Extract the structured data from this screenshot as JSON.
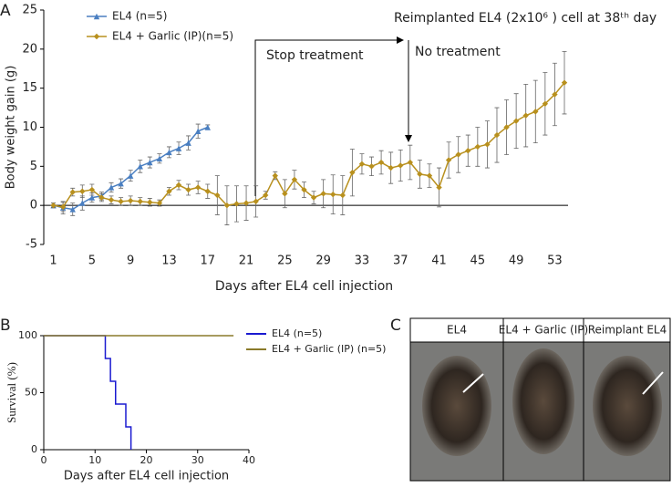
{
  "chart_data": [
    {
      "type": "line",
      "panel": "A",
      "y_label": "Body weight gain (g)",
      "x_label": "Days after EL4 cell injection",
      "annotations": [
        "Stop treatment",
        "No treatment",
        "Reimplanted EL4 (2x10⁶ ) cell at 38ᵗʰ day"
      ],
      "x": [
        1,
        2,
        3,
        4,
        5,
        6,
        7,
        8,
        9,
        10,
        11,
        12,
        13,
        14,
        15,
        16,
        17,
        18,
        19,
        20,
        21,
        22,
        23,
        24,
        25,
        26,
        27,
        28,
        29,
        30,
        31,
        32,
        33,
        34,
        35,
        36,
        37,
        38,
        39,
        40,
        41,
        42,
        43,
        44,
        45,
        46,
        47,
        48,
        49,
        50,
        51,
        52,
        53,
        54
      ],
      "xlim": [
        0,
        54
      ],
      "xticks": [
        1,
        5,
        9,
        13,
        17,
        21,
        25,
        29,
        33,
        37,
        41,
        45,
        49,
        53
      ],
      "ylim": [
        -5,
        25
      ],
      "yticks": [
        -5,
        0,
        5,
        10,
        15,
        20,
        25
      ],
      "series": [
        {
          "name": "EL4  (n=5)",
          "color": "#4a7fc1",
          "marker": "triangle",
          "values": [
            0,
            -0.3,
            -0.5,
            0.3,
            1.0,
            1.2,
            2.3,
            2.8,
            3.8,
            5.0,
            5.5,
            6.0,
            6.8,
            7.3,
            8.0,
            9.5,
            10.0,
            null,
            null,
            null,
            null,
            null,
            null,
            null,
            null,
            null,
            null,
            null,
            null,
            null,
            null,
            null,
            null,
            null,
            null,
            null,
            null,
            null,
            null,
            null,
            null,
            null,
            null,
            null,
            null,
            null,
            null,
            null,
            null,
            null,
            null,
            null,
            null,
            null
          ],
          "errors": [
            0.3,
            0.8,
            0.8,
            0.9,
            0.6,
            0.5,
            0.6,
            0.6,
            0.7,
            0.8,
            0.7,
            0.6,
            0.7,
            0.8,
            0.9,
            0.9,
            0.3,
            null,
            null,
            null,
            null,
            null,
            null,
            null,
            null,
            null,
            null,
            null,
            null,
            null,
            null,
            null,
            null,
            null,
            null,
            null,
            null,
            null,
            null,
            null,
            null,
            null,
            null,
            null,
            null,
            null,
            null,
            null,
            null,
            null,
            null,
            null,
            null,
            null
          ]
        },
        {
          "name": "EL4 + Garlic (IP)(n=5)",
          "color": "#b8901e",
          "marker": "diamond",
          "values": [
            0,
            -0.2,
            1.7,
            1.8,
            2.0,
            1.0,
            0.7,
            0.5,
            0.6,
            0.5,
            0.4,
            0.3,
            1.8,
            2.6,
            2.0,
            2.3,
            1.8,
            1.3,
            0.0,
            0.2,
            0.3,
            0.5,
            1.3,
            3.8,
            1.5,
            3.3,
            2.0,
            1.0,
            1.5,
            1.4,
            1.3,
            4.2,
            5.3,
            5.0,
            5.5,
            4.8,
            5.1,
            5.5,
            4.0,
            3.8,
            2.3,
            5.8,
            6.5,
            7.0,
            7.5,
            7.8,
            9.0,
            10.0,
            10.8,
            11.5,
            12.0,
            13.0,
            14.2,
            15.7
          ],
          "errors": [
            0.3,
            0.6,
            0.5,
            0.8,
            0.7,
            0.5,
            0.5,
            0.5,
            0.6,
            0.5,
            0.5,
            0.4,
            0.5,
            0.6,
            0.7,
            0.8,
            0.9,
            2.5,
            2.5,
            2.3,
            2.2,
            2.0,
            0.5,
            0.5,
            1.8,
            1.2,
            1.0,
            0.8,
            1.8,
            2.5,
            2.5,
            3.0,
            1.3,
            1.2,
            1.5,
            2.0,
            2.0,
            2.2,
            1.8,
            1.5,
            2.5,
            2.3,
            2.3,
            2.0,
            2.5,
            3.0,
            3.5,
            3.5,
            3.5,
            4.0,
            4.0,
            4.0,
            4.0,
            4.0
          ]
        }
      ]
    },
    {
      "type": "step",
      "panel": "B",
      "y_label": "Survival (%)",
      "x_label": "Days after EL4 cell injection",
      "xlim": [
        0,
        40
      ],
      "xticks": [
        0,
        10,
        20,
        30,
        40
      ],
      "ylim": [
        0,
        100
      ],
      "yticks": [
        0,
        50,
        100
      ],
      "series": [
        {
          "name": "EL4  (n=5)",
          "color": "#1a1ad0",
          "x": [
            0,
            12,
            13,
            14,
            16,
            17
          ],
          "values": [
            100,
            80,
            60,
            40,
            20,
            0
          ]
        },
        {
          "name": "EL4 + Garlic (IP) (n=5)",
          "color": "#8a7a2a",
          "x": [
            0,
            37
          ],
          "values": [
            100,
            100
          ]
        }
      ]
    }
  ],
  "photo_panel": {
    "panel": "C",
    "labels": [
      "EL4",
      "EL4 + Garlic (IP)",
      "Reimplant  EL4"
    ]
  }
}
